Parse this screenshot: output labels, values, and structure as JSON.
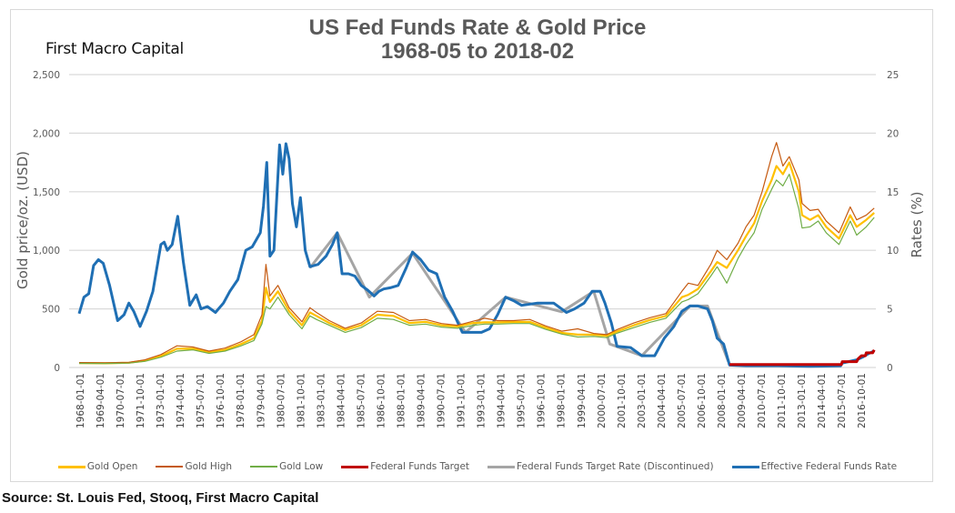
{
  "brand": "First Macro Capital",
  "source": "Source: St. Louis Fed, Stooq, First Macro Capital",
  "chart_data": {
    "type": "line",
    "title": [
      "US Fed Funds Rate & Gold Price",
      "1968-05 to 2018-02"
    ],
    "ylabel": "Gold price/oz. (USD)",
    "y2label": "Rates (%)",
    "xlim": [
      1968.0,
      2018.1
    ],
    "ylim": [
      0,
      2500
    ],
    "y2lim": [
      0,
      25
    ],
    "yticks": [
      "0",
      "500",
      "1,000",
      "1,500",
      "2,000",
      "2,500"
    ],
    "ytick_values": [
      0,
      500,
      1000,
      1500,
      2000,
      2500
    ],
    "y2ticks": [
      "0",
      "5",
      "10",
      "15",
      "20",
      "25"
    ],
    "y2tick_values": [
      0,
      5,
      10,
      15,
      20,
      25
    ],
    "grid": true,
    "legend_position": "bottom",
    "xticks": [
      "1968-01-01",
      "1969-04-01",
      "1970-07-01",
      "1971-10-01",
      "1973-01-01",
      "1974-04-01",
      "1975-07-01",
      "1976-10-01",
      "1978-01-01",
      "1979-04-01",
      "1980-07-01",
      "1981-10-01",
      "1983-01-01",
      "1984-04-01",
      "1985-07-01",
      "1986-10-01",
      "1988-01-01",
      "1989-04-01",
      "1990-07-01",
      "1991-10-01",
      "1993-01-01",
      "1994-04-01",
      "1995-07-01",
      "1996-10-01",
      "1998-01-01",
      "1999-04-01",
      "2000-07-01",
      "2001-10-01",
      "2003-01-01",
      "2004-04-01",
      "2005-07-01",
      "2006-10-01",
      "2008-01-01",
      "2009-04-01",
      "2010-07-01",
      "2011-10-01",
      "2013-01-01",
      "2014-04-01",
      "2015-07-01",
      "2016-10-01"
    ],
    "series": [
      {
        "name": "Gold Open",
        "axis": "left",
        "color": "#FFC000",
        "width": 2.2,
        "x": [
          1968.4,
          1970,
          1971.5,
          1972.5,
          1973.5,
          1974.5,
          1975.5,
          1976.5,
          1977.5,
          1978.5,
          1979.3,
          1979.8,
          1980.05,
          1980.3,
          1980.8,
          1981.5,
          1982.3,
          1982.8,
          1983.2,
          1984,
          1985,
          1986,
          1987,
          1988,
          1989,
          1990,
          1991,
          1992,
          1993,
          1993.7,
          1994.5,
          1995.5,
          1996.5,
          1997.5,
          1998.5,
          1999.5,
          2000.5,
          2001.3,
          2002,
          2003,
          2004,
          2005,
          2006,
          2006.4,
          2007,
          2007.8,
          2008.2,
          2008.8,
          2009.5,
          2010,
          2010.5,
          2011,
          2011.6,
          2011.9,
          2012.3,
          2012.7,
          2013.3,
          2013.5,
          2014,
          2014.5,
          2015,
          2015.8,
          2016.5,
          2016.9,
          2017.5,
          2018.0
        ],
        "y": [
          38,
          36,
          40,
          58,
          97,
          160,
          161,
          130,
          150,
          200,
          250,
          400,
          680,
          560,
          650,
          480,
          360,
          470,
          440,
          380,
          320,
          360,
          450,
          440,
          380,
          390,
          360,
          350,
          380,
          385,
          385,
          388,
          390,
          340,
          295,
          280,
          280,
          270,
          310,
          360,
          405,
          440,
          600,
          620,
          670,
          820,
          900,
          850,
          1000,
          1120,
          1230,
          1420,
          1600,
          1720,
          1650,
          1750,
          1500,
          1300,
          1260,
          1300,
          1200,
          1100,
          1300,
          1200,
          1260,
          1320
        ]
      },
      {
        "name": "Gold High",
        "axis": "left",
        "color": "#C55A11",
        "width": 1.2,
        "x": [
          1968.4,
          1970,
          1971.5,
          1972.5,
          1973.5,
          1974.5,
          1975.5,
          1976.5,
          1977.5,
          1978.5,
          1979.3,
          1979.8,
          1980.05,
          1980.3,
          1980.8,
          1981.5,
          1982.3,
          1982.8,
          1983.2,
          1984,
          1985,
          1986,
          1987,
          1988,
          1989,
          1990,
          1991,
          1992,
          1993,
          1993.7,
          1994.5,
          1995.5,
          1996.5,
          1997.5,
          1998.5,
          1999.5,
          2000.5,
          2001.3,
          2002,
          2003,
          2004,
          2005,
          2006,
          2006.4,
          2007,
          2007.8,
          2008.2,
          2008.8,
          2009.5,
          2010,
          2010.5,
          2011,
          2011.6,
          2011.9,
          2012.3,
          2012.7,
          2013.3,
          2013.5,
          2014,
          2014.5,
          2015,
          2015.8,
          2016.5,
          2016.9,
          2017.5,
          2018.0
        ],
        "y": [
          42,
          40,
          44,
          65,
          110,
          185,
          175,
          140,
          165,
          220,
          280,
          450,
          880,
          610,
          700,
          510,
          390,
          510,
          470,
          400,
          335,
          380,
          480,
          470,
          400,
          410,
          375,
          360,
          395,
          420,
          400,
          400,
          410,
          355,
          310,
          330,
          290,
          280,
          325,
          380,
          425,
          460,
          650,
          720,
          700,
          880,
          1000,
          920,
          1060,
          1200,
          1300,
          1500,
          1800,
          1920,
          1720,
          1800,
          1600,
          1400,
          1340,
          1350,
          1250,
          1150,
          1370,
          1260,
          1300,
          1360
        ]
      },
      {
        "name": "Gold Low",
        "axis": "left",
        "color": "#70AD47",
        "width": 1.2,
        "x": [
          1968.4,
          1970,
          1971.5,
          1972.5,
          1973.5,
          1974.5,
          1975.5,
          1976.5,
          1977.5,
          1978.5,
          1979.3,
          1979.8,
          1980.05,
          1980.3,
          1980.8,
          1981.5,
          1982.3,
          1982.8,
          1983.2,
          1984,
          1985,
          1986,
          1987,
          1988,
          1989,
          1990,
          1991,
          1992,
          1993,
          1993.7,
          1994.5,
          1995.5,
          1996.5,
          1997.5,
          1998.5,
          1999.5,
          2000.5,
          2001.3,
          2002,
          2003,
          2004,
          2005,
          2006,
          2006.4,
          2007,
          2007.8,
          2008.2,
          2008.8,
          2009.5,
          2010,
          2010.5,
          2011,
          2011.6,
          2011.9,
          2012.3,
          2012.7,
          2013.3,
          2013.5,
          2014,
          2014.5,
          2015,
          2015.8,
          2016.5,
          2016.9,
          2017.5,
          2018.0
        ],
        "y": [
          35,
          34,
          37,
          52,
          88,
          140,
          150,
          120,
          140,
          185,
          230,
          370,
          520,
          500,
          600,
          450,
          330,
          440,
          410,
          360,
          300,
          340,
          420,
          410,
          360,
          370,
          345,
          335,
          360,
          370,
          370,
          375,
          375,
          325,
          285,
          260,
          265,
          255,
          295,
          340,
          385,
          420,
          560,
          580,
          630,
          780,
          860,
          720,
          930,
          1050,
          1150,
          1350,
          1520,
          1600,
          1550,
          1650,
          1350,
          1190,
          1200,
          1250,
          1150,
          1050,
          1250,
          1130,
          1200,
          1280
        ]
      },
      {
        "name": "Federal Funds Target",
        "axis": "right",
        "color": "#C00000",
        "width": 3,
        "x": [
          2008.97,
          2011,
          2013,
          2015,
          2015.95,
          2016.0,
          2016.9,
          2017.0,
          2017.2,
          2017.45,
          2017.5,
          2017.9,
          2018.0
        ],
        "y": [
          0.25,
          0.25,
          0.25,
          0.25,
          0.25,
          0.5,
          0.5,
          0.75,
          1.0,
          1.0,
          1.25,
          1.25,
          1.5
        ]
      },
      {
        "name": "Federal Funds Target Rate (Discontinued)",
        "axis": "right",
        "color": "#A5A5A5",
        "width": 3,
        "x": [
          1982.8,
          1984.5,
          1986.5,
          1989.2,
          1992.5,
          1995,
          1998.5,
          2000.5,
          2001.5,
          2003.5,
          2006.5,
          2007.6,
          2008.2,
          2008.9
        ],
        "y": [
          8.5,
          11.5,
          6.0,
          9.75,
          3.0,
          6.0,
          4.75,
          6.5,
          2.0,
          1.0,
          5.25,
          5.25,
          3.0,
          0.5
        ]
      },
      {
        "name": "Effective Federal Funds Rate",
        "axis": "right",
        "color": "#1F6FB4",
        "width": 3,
        "x": [
          1968.4,
          1968.7,
          1969.0,
          1969.3,
          1969.6,
          1969.9,
          1970.3,
          1970.8,
          1971.2,
          1971.5,
          1971.8,
          1972.2,
          1972.6,
          1973.0,
          1973.5,
          1973.7,
          1973.9,
          1974.2,
          1974.55,
          1974.9,
          1975.3,
          1975.7,
          1976.0,
          1976.4,
          1976.9,
          1977.4,
          1977.8,
          1978.3,
          1978.8,
          1979.2,
          1979.7,
          1979.9,
          1980.1,
          1980.3,
          1980.55,
          1980.9,
          1981.1,
          1981.3,
          1981.5,
          1981.7,
          1981.95,
          1982.2,
          1982.5,
          1982.8,
          1983.3,
          1983.8,
          1984.2,
          1984.5,
          1984.8,
          1985.2,
          1985.6,
          1986.0,
          1986.4,
          1986.8,
          1987.1,
          1987.4,
          1987.8,
          1988.3,
          1988.8,
          1989.2,
          1989.7,
          1990.2,
          1990.7,
          1991.2,
          1991.7,
          1992.3,
          1992.9,
          1993.5,
          1994.0,
          1994.5,
          1995.0,
          1995.5,
          1996.0,
          1997.0,
          1998.0,
          1998.8,
          1999.3,
          1999.9,
          2000.4,
          2000.9,
          2001.2,
          2001.6,
          2001.95,
          2002.8,
          2003.5,
          2004.3,
          2004.9,
          2005.5,
          2006.0,
          2006.5,
          2007.0,
          2007.6,
          2007.9,
          2008.2,
          2008.6,
          2008.97,
          2010,
          2012,
          2014,
          2015.9,
          2016.0,
          2016.9,
          2017.3,
          2017.6,
          2018.0
        ],
        "y": [
          4.6,
          6.0,
          6.3,
          8.7,
          9.2,
          8.9,
          7.0,
          4.0,
          4.5,
          5.5,
          4.8,
          3.5,
          4.8,
          6.5,
          10.5,
          10.7,
          10.0,
          10.5,
          12.9,
          9.0,
          5.3,
          6.2,
          5.0,
          5.2,
          4.7,
          5.5,
          6.5,
          7.5,
          10.0,
          10.3,
          11.5,
          13.8,
          17.5,
          9.5,
          10.0,
          19.0,
          16.5,
          19.1,
          17.8,
          14.0,
          12.0,
          14.5,
          10.0,
          8.6,
          8.8,
          9.5,
          10.5,
          11.5,
          8.0,
          8.0,
          7.8,
          7.0,
          6.6,
          6.1,
          6.5,
          6.7,
          6.8,
          7.0,
          8.5,
          9.85,
          9.2,
          8.3,
          8.0,
          6.0,
          4.8,
          3.0,
          3.0,
          3.0,
          3.3,
          4.5,
          6.0,
          5.7,
          5.3,
          5.5,
          5.5,
          4.7,
          5.0,
          5.5,
          6.5,
          6.5,
          5.5,
          3.8,
          1.8,
          1.7,
          1.0,
          1.0,
          2.5,
          3.5,
          4.8,
          5.25,
          5.25,
          5.0,
          4.0,
          2.5,
          2.0,
          0.2,
          0.15,
          0.15,
          0.1,
          0.13,
          0.38,
          0.65,
          0.9,
          1.15,
          1.42
        ]
      }
    ]
  }
}
